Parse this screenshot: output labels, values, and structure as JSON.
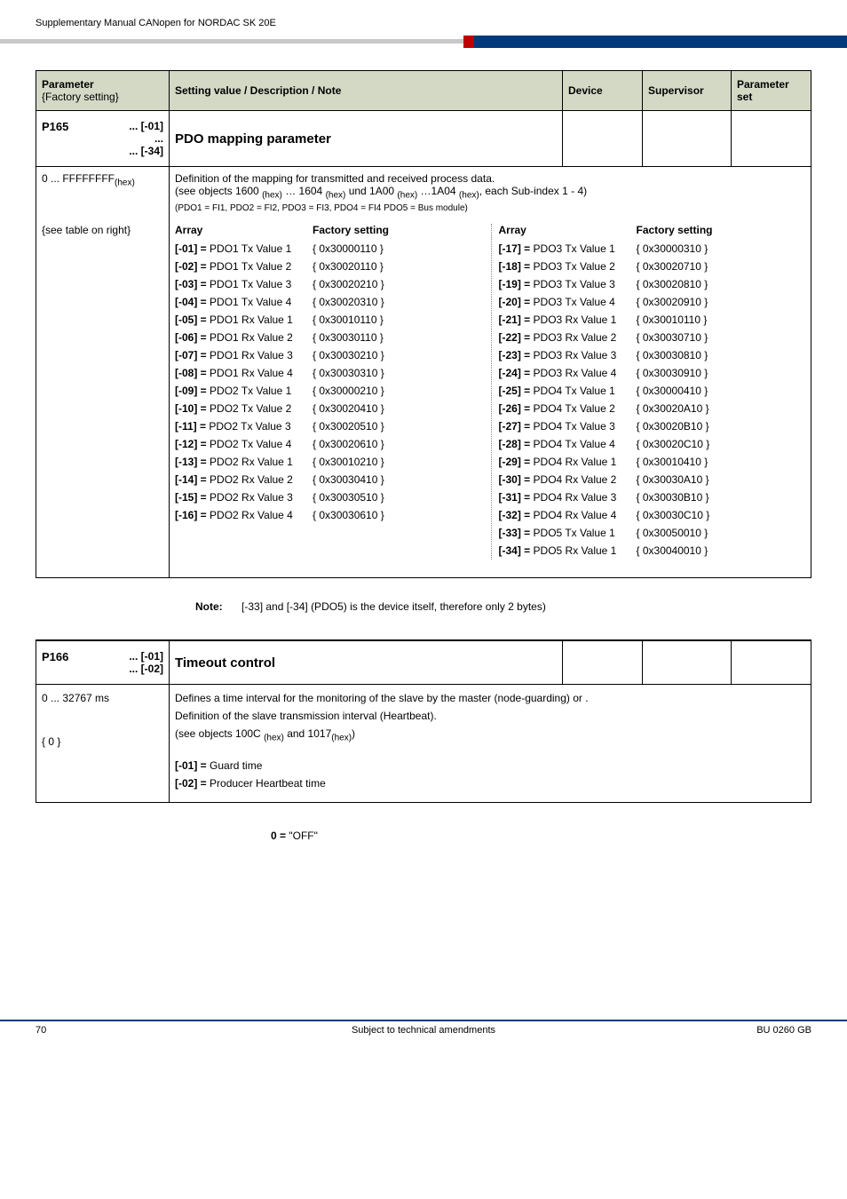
{
  "header_text": "Supplementary Manual CANopen for NORDAC SK 20E",
  "table_header": {
    "param": "Parameter",
    "factory": "{Factory setting}",
    "setting": "Setting value / Description / Note",
    "device": "Device",
    "supervisor": "Supervisor",
    "paramset": "Parameter set"
  },
  "p165": {
    "code": "P165",
    "sub_top": "... [-01]",
    "sub_dots": "...",
    "sub_bot": "... [-34]",
    "name": "PDO mapping parameter",
    "range": "0 ... FFFFFFFF",
    "range_sub": "(hex)",
    "def1": "Definition of the mapping for transmitted and received process data.",
    "def2_a": "(see objects 1600 ",
    "def2_b": " … 1604 ",
    "def2_c": " und 1A00 ",
    "def2_d": " …1A04 ",
    "def2_e": ", each Sub-index 1 - 4)",
    "hex": "(hex)",
    "def3": "(PDO1 = FI1, PDO2 = FI2, PDO3 = FI3, PDO4 = FI4 PDO5 = Bus module)",
    "see_table": "{see table on right}",
    "col_array": "Array",
    "col_factory": "Factory setting",
    "left": [
      {
        "k": "[-01] =",
        "l": "PDO1 Tx Value 1",
        "v": "{ 0x30000110 }"
      },
      {
        "k": "[-02] =",
        "l": "PDO1 Tx Value 2",
        "v": "{ 0x30020110 }"
      },
      {
        "k": "[-03] =",
        "l": "PDO1 Tx Value 3",
        "v": "{ 0x30020210 }"
      },
      {
        "k": "[-04] =",
        "l": "PDO1 Tx Value 4",
        "v": "{ 0x30020310 }"
      },
      {
        "k": "[-05] =",
        "l": "PDO1 Rx Value 1",
        "v": "{ 0x30010110 }"
      },
      {
        "k": "[-06] =",
        "l": "PDO1 Rx Value 2",
        "v": "{ 0x30030110 }"
      },
      {
        "k": "[-07] =",
        "l": "PDO1 Rx Value 3",
        "v": "{ 0x30030210 }"
      },
      {
        "k": "[-08] =",
        "l": "PDO1 Rx Value 4",
        "v": "{ 0x30030310 }"
      },
      {
        "k": "[-09] =",
        "l": "PDO2 Tx Value 1",
        "v": "{ 0x30000210 }"
      },
      {
        "k": "[-10] =",
        "l": "PDO2 Tx Value 2",
        "v": "{ 0x30020410 }"
      },
      {
        "k": "[-11] =",
        "l": "PDO2 Tx Value 3",
        "v": "{ 0x30020510 }"
      },
      {
        "k": "[-12] =",
        "l": "PDO2 Tx Value 4",
        "v": "{ 0x30020610 }"
      },
      {
        "k": "[-13] =",
        "l": "PDO2 Rx Value 1",
        "v": "{ 0x30010210 }"
      },
      {
        "k": "[-14] =",
        "l": "PDO2 Rx Value 2",
        "v": "{ 0x30030410 }"
      },
      {
        "k": "[-15] =",
        "l": "PDO2 Rx Value 3",
        "v": "{ 0x30030510 }"
      },
      {
        "k": "[-16] =",
        "l": "PDO2 Rx Value 4",
        "v": "{ 0x30030610 }"
      }
    ],
    "right": [
      {
        "k": "[-17] =",
        "l": "PDO3 Tx Value 1",
        "v": "{ 0x30000310 }"
      },
      {
        "k": "[-18] =",
        "l": "PDO3 Tx Value 2",
        "v": "{ 0x30020710 }"
      },
      {
        "k": "[-19] =",
        "l": "PDO3 Tx Value 3",
        "v": "{ 0x30020810 }"
      },
      {
        "k": "[-20] =",
        "l": "PDO3 Tx Value 4",
        "v": "{ 0x30020910 }"
      },
      {
        "k": "[-21] =",
        "l": "PDO3 Rx Value 1",
        "v": "{ 0x30010110 }"
      },
      {
        "k": "[-22] =",
        "l": "PDO3 Rx Value 2",
        "v": "{ 0x30030710 }"
      },
      {
        "k": "[-23] =",
        "l": "PDO3 Rx Value 3",
        "v": "{ 0x30030810 }"
      },
      {
        "k": "[-24] =",
        "l": "PDO3 Rx Value 4",
        "v": "{ 0x30030910 }"
      },
      {
        "k": "[-25] =",
        "l": "PDO4 Tx Value 1",
        "v": "{ 0x30000410 }"
      },
      {
        "k": "[-26] =",
        "l": "PDO4 Tx Value 2",
        "v": "{ 0x30020A10 }"
      },
      {
        "k": "[-27] =",
        "l": "PDO4 Tx Value 3",
        "v": "{ 0x30020B10 }"
      },
      {
        "k": "[-28] =",
        "l": "PDO4 Tx Value 4",
        "v": "{ 0x30020C10 }"
      },
      {
        "k": "[-29] =",
        "l": "PDO4 Rx Value 1",
        "v": "{ 0x30010410 }"
      },
      {
        "k": "[-30] =",
        "l": "PDO4 Rx Value 2",
        "v": "{ 0x30030A10 }"
      },
      {
        "k": "[-31] =",
        "l": "PDO4 Rx Value 3",
        "v": "{ 0x30030B10 }"
      },
      {
        "k": "[-32] =",
        "l": "PDO4 Rx Value 4",
        "v": "{ 0x30030C10 }"
      },
      {
        "k": "[-33] =",
        "l": "PDO5 Tx Value 1",
        "v": "{ 0x30050010 }"
      },
      {
        "k": "[-34] =",
        "l": "PDO5 Rx Value 1",
        "v": "{ 0x30040010 }"
      }
    ],
    "note_label": "Note:",
    "note_text": "[-33] and [-34] (PDO5) is the device itself, therefore only 2 bytes)"
  },
  "p166": {
    "code": "P166",
    "sub1": "... [-01]",
    "sub2": "... [-02]",
    "name": "Timeout control",
    "range": "0 ... 32767 ms",
    "factory": "{ 0 }",
    "d1": "Defines a time interval for the monitoring of the slave by the master (node-guarding) or .",
    "d2": "Definition of the slave transmission interval (Heartbeat).",
    "d3a": "(see objects 100C ",
    "d3b": " and 1017",
    "d3c": ")",
    "hex": "(hex)",
    "g1k": "[-01] = ",
    "g1v": "Guard time",
    "g2k": "[-02] = ",
    "g2v": "Producer Heartbeat time",
    "off_k": "0 =",
    "off_v": "  \"OFF\""
  },
  "footer": {
    "l": "70",
    "c": "Subject to technical amendments",
    "r": "BU 0260 GB"
  }
}
